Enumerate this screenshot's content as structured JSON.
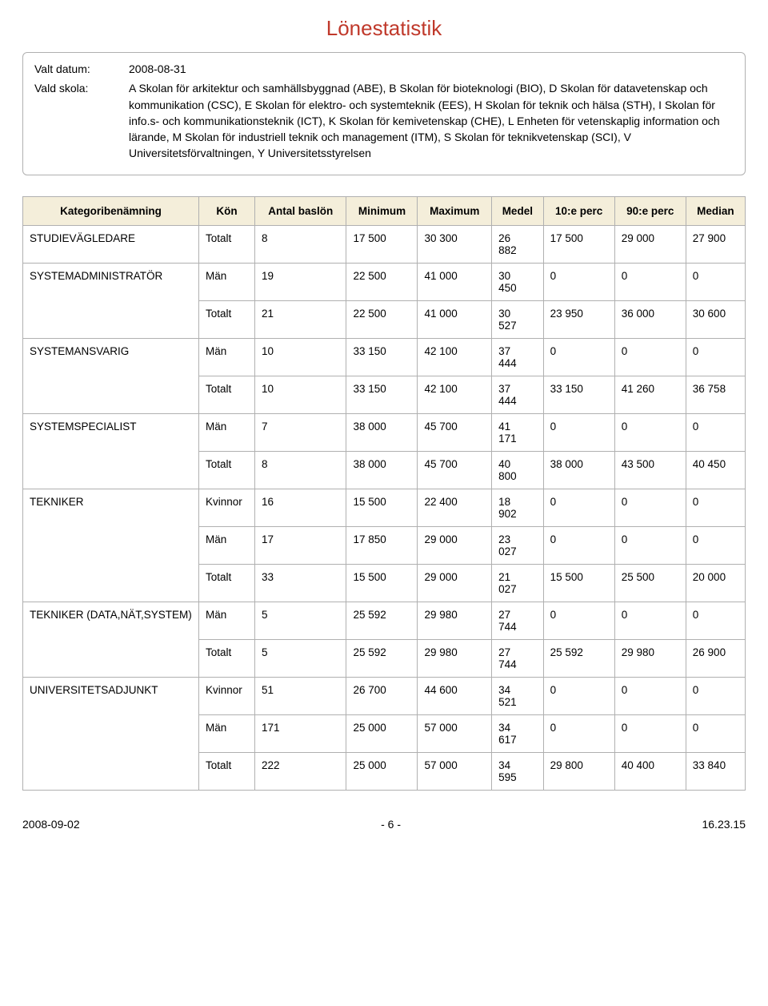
{
  "title": "Lönestatistik",
  "info": {
    "label_date": "Valt datum:",
    "value_date": "2008-08-31",
    "label_school": "Vald skola:",
    "value_school": "A  Skolan för arkitektur och samhällsbyggnad (ABE), B  Skolan för bioteknologi (BIO), D  Skolan för datavetenskap och kommunikation (CSC), E  Skolan för elektro- och systemteknik (EES), H  Skolan för teknik och hälsa (STH), I  Skolan för info.s- och kommunikationsteknik (ICT), K  Skolan för kemivetenskap (CHE), L  Enheten för vetenskaplig information och lärande, M  Skolan för industriell teknik och management (ITM), S  Skolan för teknikvetenskap (SCI), V  Universitetsförvaltningen, Y  Universitetsstyrelsen"
  },
  "columns": [
    "Kategoribenämning",
    "Kön",
    "Antal baslön",
    "Minimum",
    "Maximum",
    "Medel",
    "10:e perc",
    "90:e perc",
    "Median"
  ],
  "groups": [
    {
      "name": "STUDIEVÄGLEDARE",
      "rows": [
        [
          "Totalt",
          "8",
          "17 500",
          "30 300",
          "26 882",
          "17 500",
          "29 000",
          "27 900"
        ]
      ]
    },
    {
      "name": "SYSTEMADMINISTRATÖR",
      "rows": [
        [
          "Män",
          "19",
          "22 500",
          "41 000",
          "30 450",
          "0",
          "0",
          "0"
        ],
        [
          "Totalt",
          "21",
          "22 500",
          "41 000",
          "30 527",
          "23 950",
          "36 000",
          "30 600"
        ]
      ]
    },
    {
      "name": "SYSTEMANSVARIG",
      "rows": [
        [
          "Män",
          "10",
          "33 150",
          "42 100",
          "37 444",
          "0",
          "0",
          "0"
        ],
        [
          "Totalt",
          "10",
          "33 150",
          "42 100",
          "37 444",
          "33 150",
          "41 260",
          "36 758"
        ]
      ]
    },
    {
      "name": "SYSTEMSPECIALIST",
      "rows": [
        [
          "Män",
          "7",
          "38 000",
          "45 700",
          "41 171",
          "0",
          "0",
          "0"
        ],
        [
          "Totalt",
          "8",
          "38 000",
          "45 700",
          "40 800",
          "38 000",
          "43 500",
          "40 450"
        ]
      ]
    },
    {
      "name": "TEKNIKER",
      "rows": [
        [
          "Kvinnor",
          "16",
          "15 500",
          "22 400",
          "18 902",
          "0",
          "0",
          "0"
        ],
        [
          "Män",
          "17",
          "17 850",
          "29 000",
          "23 027",
          "0",
          "0",
          "0"
        ],
        [
          "Totalt",
          "33",
          "15 500",
          "29 000",
          "21 027",
          "15 500",
          "25 500",
          "20 000"
        ]
      ]
    },
    {
      "name": "TEKNIKER (DATA,NÄT,SYSTEM)",
      "rows": [
        [
          "Män",
          "5",
          "25 592",
          "29 980",
          "27 744",
          "0",
          "0",
          "0"
        ],
        [
          "Totalt",
          "5",
          "25 592",
          "29 980",
          "27 744",
          "25 592",
          "29 980",
          "26 900"
        ]
      ]
    },
    {
      "name": "UNIVERSITETSADJUNKT",
      "rows": [
        [
          "Kvinnor",
          "51",
          "26 700",
          "44 600",
          "34 521",
          "0",
          "0",
          "0"
        ],
        [
          "Män",
          "171",
          "25 000",
          "57 000",
          "34 617",
          "0",
          "0",
          "0"
        ],
        [
          "Totalt",
          "222",
          "25 000",
          "57 000",
          "34 595",
          "29 800",
          "40 400",
          "33 840"
        ]
      ]
    }
  ],
  "footer": {
    "left": "2008-09-02",
    "center": "- 6 -",
    "right": "16.23.15"
  },
  "style": {
    "title_color": "#c0392b",
    "header_bg": "#f4eeda",
    "border_color": "#b0b0b0",
    "text_color": "#000000",
    "page_bg": "#ffffff",
    "title_fontsize": 26,
    "body_fontsize": 14,
    "table_fontsize": 13.5
  }
}
